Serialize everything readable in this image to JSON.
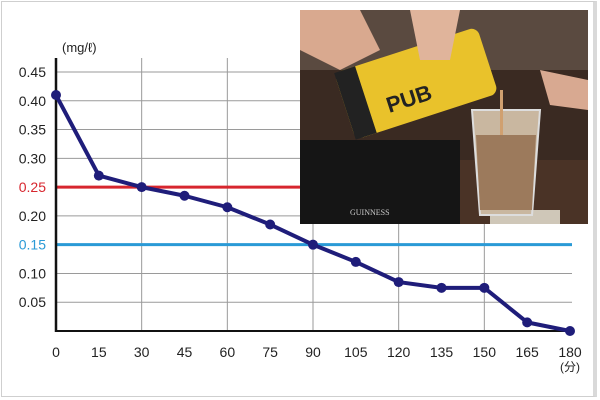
{
  "chart_data": {
    "type": "line",
    "ylabel": "(mg/ℓ)",
    "xlabel": "(分)",
    "x": [
      0,
      15,
      30,
      45,
      60,
      75,
      90,
      105,
      120,
      135,
      150,
      165,
      180
    ],
    "values": [
      0.41,
      0.27,
      0.25,
      0.235,
      0.215,
      0.185,
      0.15,
      0.12,
      0.085,
      0.075,
      0.075,
      0.015,
      0.0
    ],
    "xlim": [
      0,
      180
    ],
    "ylim": [
      0,
      0.45
    ],
    "xticks": [
      "0",
      "15",
      "30",
      "45",
      "60",
      "75",
      "90",
      "105",
      "120",
      "135",
      "150",
      "165",
      "180"
    ],
    "yticks": [
      "0.05",
      "0.10",
      "0.15",
      "0.20",
      "0.25",
      "0.30",
      "0.35",
      "0.40",
      "0.45"
    ],
    "grid": true,
    "reference_lines": [
      {
        "value": 0.25,
        "color": "#d7262e"
      },
      {
        "value": 0.15,
        "color": "#2a9ad6"
      }
    ],
    "line_color": "#1f1d7a",
    "inset_photo": "beer being poured from a can into a glass at a bar"
  }
}
